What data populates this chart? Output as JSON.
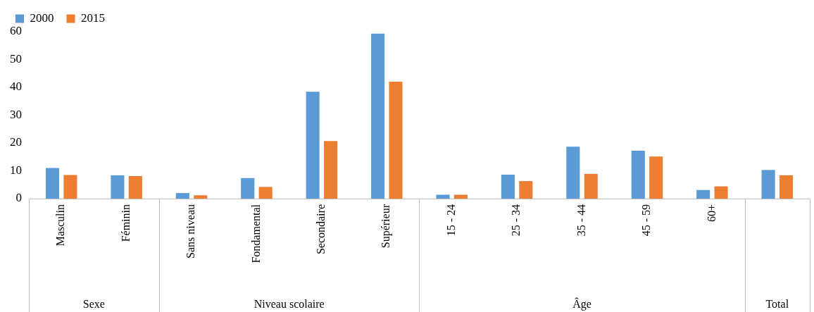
{
  "chart_data": {
    "type": "bar",
    "categories": [
      "Masculin",
      "Féminin",
      "Sans niveau",
      "Fondamental",
      "Secondaire",
      "Supérieur",
      "15 - 24",
      "25 - 34",
      "35 - 44",
      "45 - 59",
      "60+",
      null
    ],
    "series": [
      {
        "name": "2000",
        "color": "#5b9bd5",
        "values": [
          11.0,
          8.4,
          2.0,
          7.4,
          38.4,
          59.3,
          1.4,
          8.6,
          18.7,
          17.2,
          3.1,
          10.3
        ]
      },
      {
        "name": "2015",
        "color": "#ed7d31",
        "values": [
          8.5,
          8.1,
          1.2,
          4.2,
          20.7,
          42.0,
          1.4,
          6.3,
          8.9,
          15.1,
          4.4,
          8.4
        ]
      }
    ],
    "ylim": [
      0,
      60
    ],
    "yticks": [
      0,
      10,
      20,
      30,
      40,
      50,
      60
    ],
    "grid": false,
    "legend": "top left",
    "annotations": [
      "Sexe",
      "Niveau scolaire",
      "Âge",
      "Total"
    ]
  }
}
